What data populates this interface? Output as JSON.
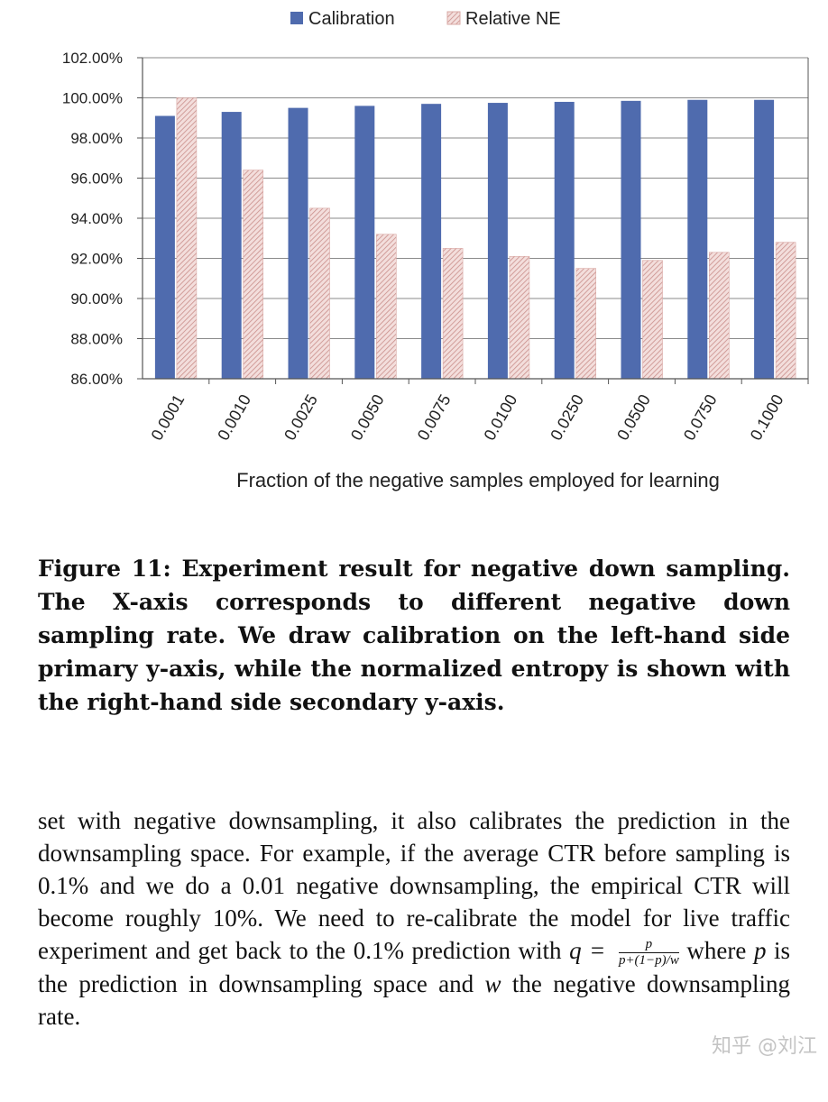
{
  "chart_data": {
    "type": "bar",
    "categories": [
      "0.0001",
      "0.0010",
      "0.0025",
      "0.0050",
      "0.0075",
      "0.0100",
      "0.0250",
      "0.0500",
      "0.0750",
      "0.1000"
    ],
    "series": [
      {
        "name": "Calibration",
        "values": [
          99.1,
          99.3,
          99.5,
          99.6,
          99.7,
          99.75,
          99.8,
          99.85,
          99.9,
          99.9
        ],
        "color": "#4F6BAE"
      },
      {
        "name": "Relative NE",
        "values": [
          100.0,
          96.4,
          94.5,
          93.2,
          92.5,
          92.1,
          91.5,
          91.9,
          92.3,
          92.8
        ],
        "color": "#E7C3C0"
      }
    ],
    "ylim": [
      86,
      102
    ],
    "yticks": [
      "86.00%",
      "88.00%",
      "90.00%",
      "92.00%",
      "94.00%",
      "96.00%",
      "98.00%",
      "100.00%",
      "102.00%"
    ],
    "xlabel": "Fraction of the negative samples employed for learning",
    "legend_position": "top-center",
    "grid": true
  },
  "caption": "Figure 11: Experiment result for negative down sampling. The X-axis corresponds to different negative down sampling rate. We draw calibration on the left-hand side primary y-axis, while the normalized entropy is shown with the right-hand side secondary y-axis.",
  "paragraph": {
    "part1": "set with negative downsampling, it also calibrates the prediction in the downsampling space. For example, if the average CTR before sampling is 0.1% and we do a 0.01 negative downsampling, the empirical CTR will become roughly 10%. We need to re-calibrate the model for live traffic experiment and get back to the 0.1% prediction with",
    "q_equals": "q =",
    "frac_num": "p",
    "frac_den": "p+(1−p)/w",
    "part2": "where",
    "var_p": "p",
    "part3": "is the prediction in downsampling space and",
    "var_w": "w",
    "part4": "the negative downsampling rate."
  },
  "watermark": "知乎 @刘江"
}
